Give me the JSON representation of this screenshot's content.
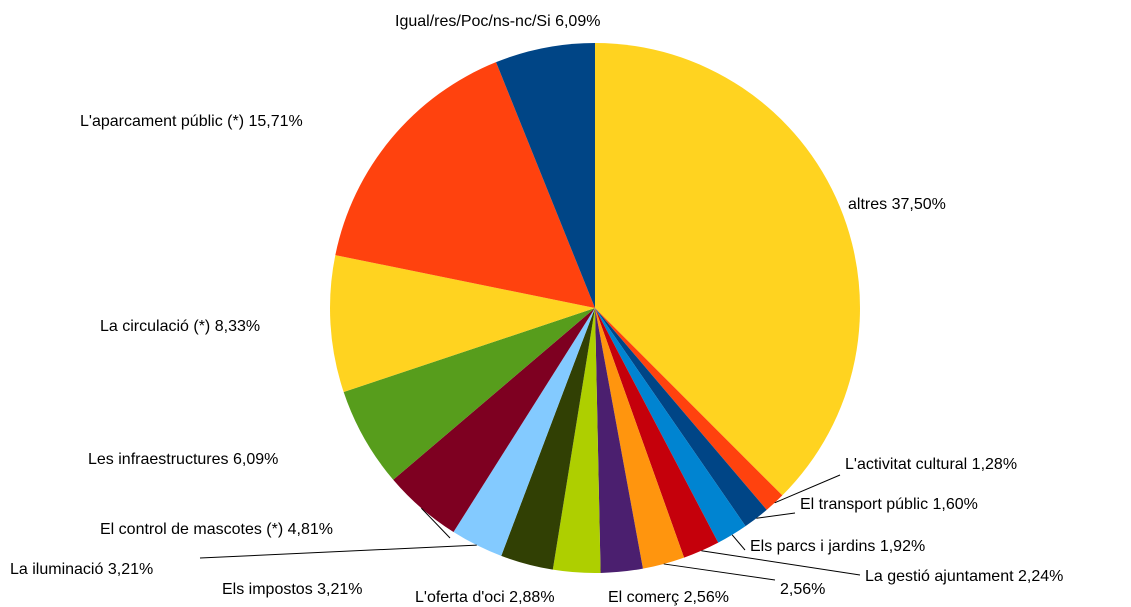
{
  "chart_data": {
    "type": "pie",
    "categories": [
      "altres",
      "L'activitat cultural",
      "El transport públic",
      "Els parcs i jardins",
      "La gestió ajuntament",
      null,
      "El comerç",
      "L'oferta d'oci",
      "Els impostos",
      "La iluminació",
      "El control de mascotes (*)",
      "Les infraestructures",
      "La circulació (*)",
      "L'aparcament públic (*)",
      "Igual/res/Poc/ns-nc/Si"
    ],
    "values": [
      37.5,
      1.28,
      1.6,
      1.92,
      2.24,
      2.56,
      2.56,
      2.88,
      3.21,
      3.21,
      4.81,
      6.09,
      8.33,
      15.71,
      6.09
    ],
    "value_labels": [
      "37,50%",
      "1,28%",
      "1,60%",
      "1,92%",
      "2,24%",
      "2,56%",
      "2,56%",
      "2,88%",
      "3,21%",
      "3,21%",
      "4,81%",
      "6,09%",
      "8,33%",
      "15,71%",
      "6,09%"
    ],
    "colors": [
      "#ffd320",
      "#ff420e",
      "#004586",
      "#0084d1",
      "#c5000b",
      "#ff950e",
      "#4b1f6f",
      "#aecf00",
      "#314004",
      "#83caff",
      "#7e0021",
      "#579d1c",
      "#ffd320",
      "#ff420e",
      "#004586"
    ]
  }
}
